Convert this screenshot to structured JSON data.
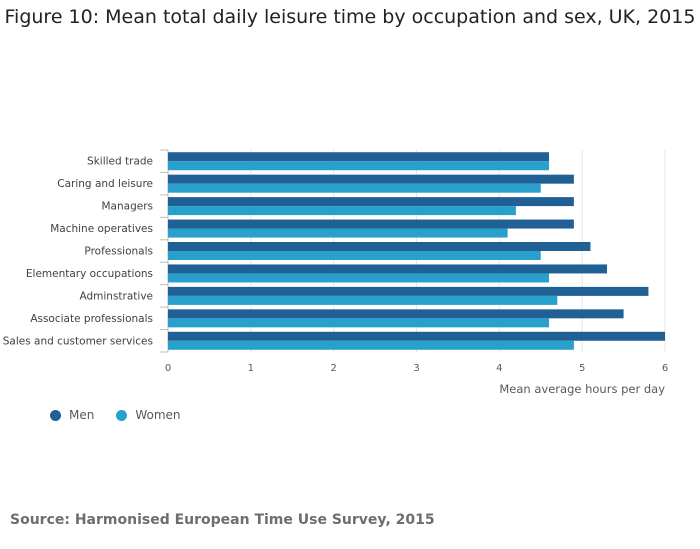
{
  "title": "Figure 10: Mean total daily leisure time by occupation and sex, UK, 2015",
  "source": "Source: Harmonised European Time Use Survey, 2015",
  "colors": {
    "men": "#206095",
    "women": "#27a0cc",
    "grid": "#e6e6e6",
    "axis": "#bebebe"
  },
  "chart_data": {
    "type": "bar",
    "orientation": "horizontal",
    "title": "Figure 10: Mean total daily leisure time by occupation and sex, UK, 2015",
    "xlabel": "Mean average hours per day",
    "ylabel": "",
    "xlim": [
      0,
      6
    ],
    "xticks": [
      "0",
      "1",
      "2",
      "3",
      "4",
      "5",
      "6"
    ],
    "grid": true,
    "legend": "bottom-left",
    "categories": [
      "Skilled trade",
      "Caring and leisure",
      "Managers",
      "Machine operatives",
      "Professionals",
      "Elementary occupations",
      "Adminstrative",
      "Associate professionals",
      "Sales and customer services"
    ],
    "series": [
      {
        "name": "Men",
        "values": [
          4.6,
          4.9,
          4.9,
          4.9,
          5.1,
          5.3,
          5.8,
          5.5,
          6.0
        ]
      },
      {
        "name": "Women",
        "values": [
          4.6,
          4.5,
          4.2,
          4.1,
          4.5,
          4.6,
          4.7,
          4.6,
          4.9
        ]
      }
    ]
  }
}
